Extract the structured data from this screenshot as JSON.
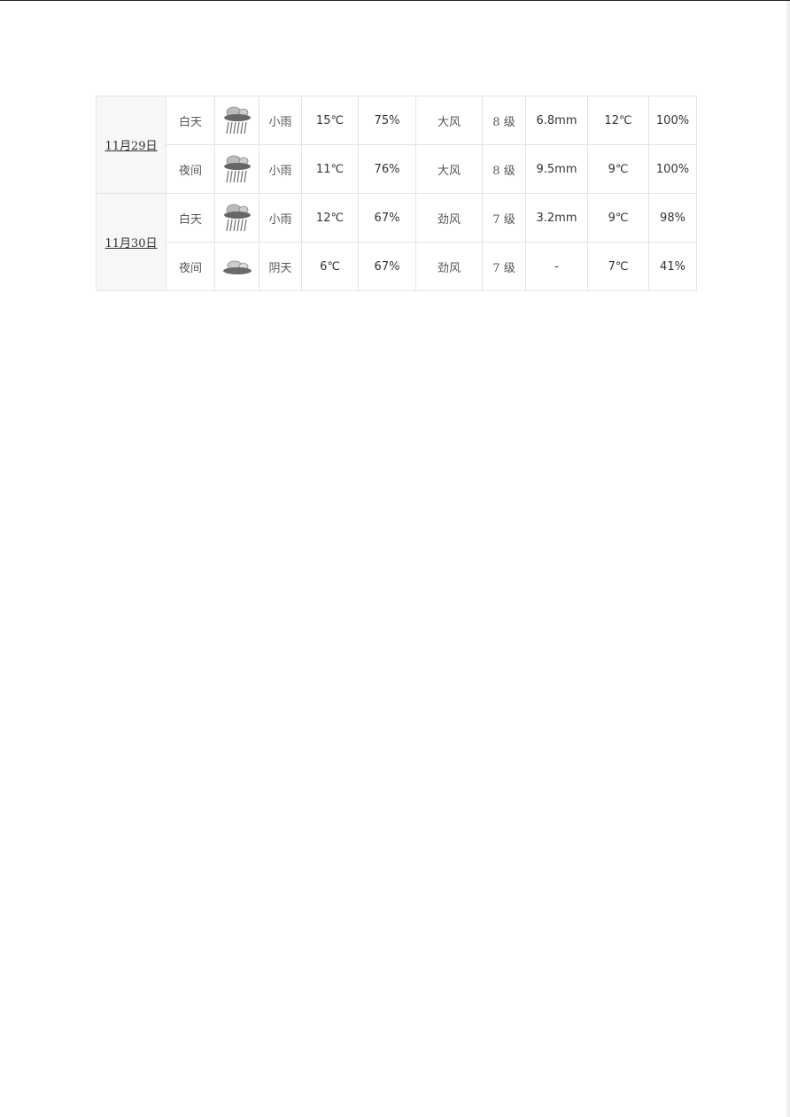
{
  "forecast": [
    {
      "date": "11月29日",
      "periods": [
        {
          "period": "白天",
          "icon": "light-rain-icon",
          "weather": "小雨",
          "temp": "15℃",
          "humidity": "75%",
          "wind": "大风",
          "wind_level": "8 级",
          "precip": "6.8mm",
          "feels": "12℃",
          "chance": "100%"
        },
        {
          "period": "夜间",
          "icon": "light-rain-icon",
          "weather": "小雨",
          "temp": "11℃",
          "humidity": "76%",
          "wind": "大风",
          "wind_level": "8 级",
          "precip": "9.5mm",
          "feels": "9℃",
          "chance": "100%"
        }
      ]
    },
    {
      "date": "11月30日",
      "periods": [
        {
          "period": "白天",
          "icon": "light-rain-icon",
          "weather": "小雨",
          "temp": "12℃",
          "humidity": "67%",
          "wind": "劲风",
          "wind_level": "7 级",
          "precip": "3.2mm",
          "feels": "9℃",
          "chance": "98%"
        },
        {
          "period": "夜间",
          "icon": "overcast-icon",
          "weather": "阴天",
          "temp": "6℃",
          "humidity": "67%",
          "wind": "劲风",
          "wind_level": "7 级",
          "precip": "-",
          "feels": "7℃",
          "chance": "41%"
        }
      ]
    }
  ]
}
